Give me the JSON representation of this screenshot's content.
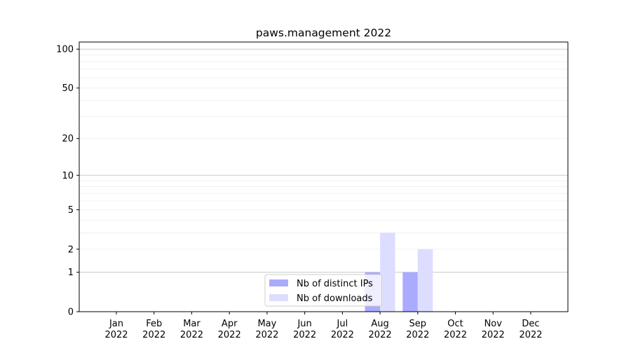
{
  "chart_data": {
    "type": "bar",
    "title": "paws.management 2022",
    "xlabel": "",
    "ylabel": "",
    "yscale": "log(1+y)",
    "ylim": [
      0,
      113
    ],
    "grid": true,
    "legend_placement": "lower-center",
    "yticks": [
      0,
      1,
      2,
      5,
      10,
      20,
      50,
      100
    ],
    "ytick_labels": [
      "0",
      "1",
      "2",
      "5",
      "10",
      "20",
      "50",
      "100"
    ],
    "categories": [
      "Jan\n2022",
      "Feb\n2022",
      "Mar\n2022",
      "Apr\n2022",
      "May\n2022",
      "Jun\n2022",
      "Jul\n2022",
      "Aug\n2022",
      "Sep\n2022",
      "Oct\n2022",
      "Nov\n2022",
      "Dec\n2022"
    ],
    "category_month": [
      "Jan",
      "Feb",
      "Mar",
      "Apr",
      "May",
      "Jun",
      "Jul",
      "Aug",
      "Sep",
      "Oct",
      "Nov",
      "Dec"
    ],
    "category_year": [
      "2022",
      "2022",
      "2022",
      "2022",
      "2022",
      "2022",
      "2022",
      "2022",
      "2022",
      "2022",
      "2022",
      "2022"
    ],
    "series": [
      {
        "name": "Nb of distinct IPs",
        "color": "#aaaaff",
        "values": [
          0,
          0,
          0,
          0,
          0,
          0,
          0,
          1,
          1,
          0,
          0,
          0
        ]
      },
      {
        "name": "Nb of downloads",
        "color": "#ddddff",
        "values": [
          0,
          0,
          0,
          0,
          0,
          0,
          0,
          3,
          2,
          0,
          0,
          0
        ]
      }
    ]
  }
}
